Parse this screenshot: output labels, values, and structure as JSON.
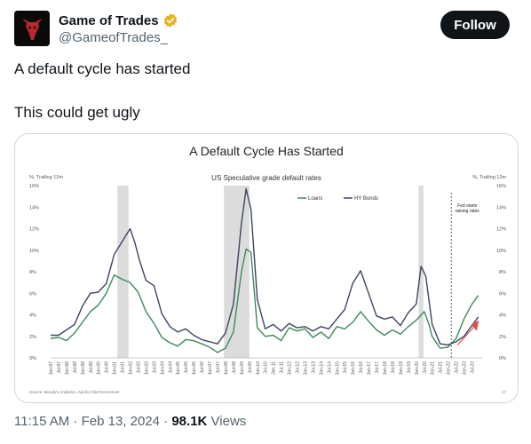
{
  "tweet": {
    "author": {
      "display_name": "Game of Trades",
      "handle": "@GameofTrades_",
      "verified_badge_color": "#e8b422",
      "avatar_icon": "bull-logo-icon"
    },
    "follow_label": "Follow",
    "lines": [
      "A default cycle has started",
      "This could get ugly"
    ],
    "time": "11:15 AM · Feb 13, 2024 ·",
    "views_count": "98.1K",
    "views_label": "Views"
  },
  "chart_data": {
    "type": "line",
    "title": "A Default Cycle Has Started",
    "subtitle": "US Speculative grade default rates",
    "y_label_left": "%, Trailing 12m",
    "y_label_right": "%, Trailing 12m",
    "ylim": [
      0,
      16
    ],
    "y_ticks": [
      "0%",
      "2%",
      "4%",
      "6%",
      "8%",
      "10%",
      "12%",
      "14%",
      "16%"
    ],
    "x_ticks": [
      "Jan-97",
      "Jul-97",
      "Jan-98",
      "Jul-98",
      "Jan-99",
      "Jul-99",
      "Jan-00",
      "Jul-00",
      "Jan-01",
      "Jul-01",
      "Jan-02",
      "Jul-02",
      "Jan-03",
      "Jul-03",
      "Jan-04",
      "Jul-04",
      "Jan-05",
      "Jul-05",
      "Jan-06",
      "Jul-06",
      "Jan-07",
      "Jul-07",
      "Jan-08",
      "Jul-08",
      "Jan-09",
      "Jul-09",
      "Jan-10",
      "Jul-10",
      "Jan-11",
      "Jul-11",
      "Jan-12",
      "Jul-12",
      "Jan-13",
      "Jul-13",
      "Jan-14",
      "Jul-14",
      "Jan-15",
      "Jul-15",
      "Jan-16",
      "Jul-16",
      "Jan-17",
      "Jul-17",
      "Jan-18",
      "Jul-18",
      "Jan-19",
      "Jul-19",
      "Jan-20",
      "Jul-20",
      "Jan-21",
      "Jul-21",
      "Jan-22",
      "Jul-22",
      "Jan-23",
      "Jul-23"
    ],
    "x_range": [
      1997.0,
      2024.2
    ],
    "recessions": [
      [
        2001.2,
        2001.9
      ],
      [
        2007.9,
        2009.5
      ],
      [
        2020.15,
        2020.45
      ]
    ],
    "annotation": "Fed starts raising rates",
    "annotation_x": 2022.2,
    "series": [
      {
        "name": "Loans",
        "color": "#3e8a5c",
        "x": [
          1997.0,
          1997.5,
          1998.0,
          1998.5,
          1999.0,
          1999.5,
          2000.0,
          2000.5,
          2001.0,
          2001.5,
          2002.0,
          2002.5,
          2003.0,
          2003.5,
          2004.0,
          2004.5,
          2005.0,
          2005.5,
          2006.0,
          2006.5,
          2007.0,
          2007.5,
          2008.0,
          2008.5,
          2009.0,
          2009.3,
          2009.6,
          2010.0,
          2010.5,
          2011.0,
          2011.5,
          2012.0,
          2012.5,
          2013.0,
          2013.5,
          2014.0,
          2014.5,
          2015.0,
          2015.5,
          2016.0,
          2016.5,
          2017.0,
          2017.5,
          2018.0,
          2018.5,
          2019.0,
          2019.5,
          2020.0,
          2020.5,
          2020.8,
          2021.0,
          2021.5,
          2022.0,
          2022.5,
          2023.0,
          2023.5,
          2023.9
        ],
        "values": [
          1.8,
          1.9,
          1.6,
          2.3,
          3.3,
          4.3,
          4.9,
          6.0,
          7.7,
          7.3,
          7.0,
          6.1,
          4.3,
          3.2,
          1.9,
          1.4,
          1.1,
          1.7,
          1.6,
          1.3,
          1.0,
          0.5,
          0.9,
          2.4,
          8.0,
          10.1,
          9.8,
          2.8,
          2.0,
          2.1,
          1.6,
          2.8,
          2.5,
          2.7,
          1.9,
          2.4,
          1.8,
          2.9,
          2.7,
          3.3,
          4.3,
          3.4,
          2.6,
          2.1,
          2.6,
          2.2,
          2.9,
          3.5,
          4.3,
          3.1,
          2.0,
          0.9,
          1.0,
          1.8,
          3.6,
          5.0,
          5.8
        ]
      },
      {
        "name": "HY Bonds",
        "color": "#3b4660",
        "x": [
          1997.0,
          1997.5,
          1998.0,
          1998.5,
          1999.0,
          1999.5,
          2000.0,
          2000.5,
          2001.0,
          2001.5,
          2002.0,
          2002.3,
          2002.6,
          2003.0,
          2003.5,
          2004.0,
          2004.5,
          2005.0,
          2005.5,
          2006.0,
          2006.5,
          2007.0,
          2007.5,
          2008.0,
          2008.5,
          2009.0,
          2009.3,
          2009.6,
          2010.0,
          2010.5,
          2011.0,
          2011.5,
          2012.0,
          2012.5,
          2013.0,
          2013.5,
          2014.0,
          2014.5,
          2015.0,
          2015.5,
          2016.0,
          2016.5,
          2017.0,
          2017.5,
          2018.0,
          2018.5,
          2019.0,
          2019.5,
          2020.0,
          2020.3,
          2020.6,
          2021.0,
          2021.5,
          2022.0,
          2022.5,
          2023.0,
          2023.5,
          2023.9
        ],
        "values": [
          2.1,
          2.1,
          2.6,
          3.1,
          4.8,
          6.0,
          6.1,
          6.9,
          9.6,
          10.8,
          12.0,
          10.7,
          9.0,
          7.2,
          6.7,
          4.1,
          2.9,
          2.4,
          2.7,
          2.1,
          1.7,
          1.5,
          1.3,
          2.3,
          5.0,
          12.5,
          15.7,
          13.8,
          5.4,
          2.7,
          3.1,
          2.5,
          3.2,
          2.8,
          2.9,
          2.5,
          2.9,
          2.7,
          3.6,
          4.5,
          6.9,
          8.1,
          6.0,
          3.9,
          3.6,
          3.8,
          3.0,
          4.2,
          5.0,
          8.5,
          7.6,
          3.1,
          1.3,
          1.2,
          1.5,
          2.0,
          3.0,
          3.8
        ]
      }
    ],
    "source_note": "Source: Moody's Analytics, Apollo Chief Economist",
    "page_number": "17"
  }
}
